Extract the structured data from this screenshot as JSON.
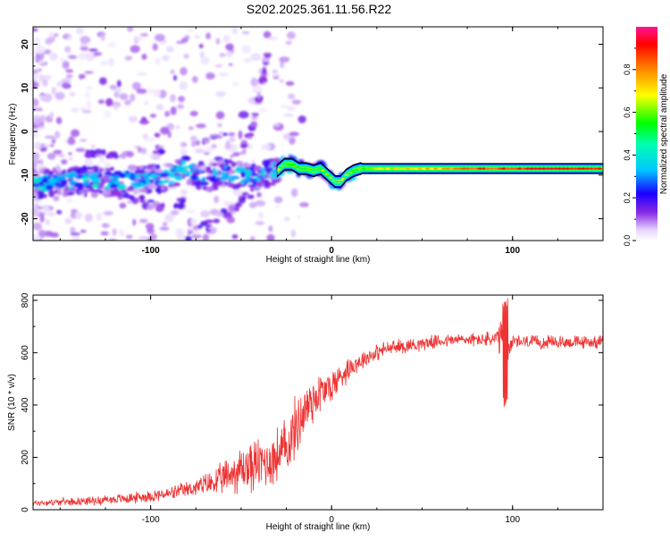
{
  "title": "S202.2025.361.11.56.R22",
  "colors": {
    "snr_line": "#ee3333",
    "axis": "#000000",
    "ridge_outline": "#000000"
  },
  "chart_data": [
    {
      "type": "heatmap",
      "name": "spectrogram",
      "xlabel": "Height of straight line (km)",
      "ylabel": "Frequency (Hz)",
      "xlim": [
        -165,
        150
      ],
      "ylim": [
        -25,
        24
      ],
      "x_ticks": [
        -100,
        0,
        100
      ],
      "x_tick_labels": [
        "-100",
        "0",
        "100"
      ],
      "y_ticks": [
        -20,
        -10,
        0,
        10,
        20
      ],
      "y_tick_labels": [
        "-20",
        "-10",
        "0",
        "10",
        "20"
      ],
      "ridge": {
        "x": [
          -165,
          -150,
          -135,
          -120,
          -105,
          -90,
          -80,
          -70,
          -60,
          -50,
          -40,
          -30,
          -26,
          -22,
          -18,
          -14,
          -10,
          -6,
          -2,
          2,
          5,
          8,
          12,
          16,
          20,
          30,
          40,
          60,
          80,
          90,
          100,
          120,
          150
        ],
        "freq": [
          -12,
          -11.5,
          -11,
          -11.5,
          -11,
          -10.5,
          -8.5,
          -11,
          -9.5,
          -10,
          -10.5,
          -9,
          -7.5,
          -7.5,
          -8.5,
          -8.5,
          -9,
          -8.5,
          -10,
          -11.5,
          -11.5,
          -10,
          -9,
          -8.5,
          -8.5,
          -8.5,
          -8.5,
          -8.5,
          -8.5,
          -8.5,
          -8.5,
          -8.5,
          -8.5
        ],
        "amplitude": [
          0.3,
          0.35,
          0.35,
          0.35,
          0.35,
          0.4,
          0.5,
          0.35,
          0.4,
          0.3,
          0.35,
          0.45,
          0.5,
          0.55,
          0.5,
          0.55,
          0.5,
          0.5,
          0.45,
          0.4,
          0.45,
          0.45,
          0.5,
          0.55,
          0.6,
          0.65,
          0.7,
          0.75,
          0.85,
          0.85,
          0.9,
          0.9,
          0.9
        ]
      },
      "secondary_tracks": [
        {
          "x": [
            -125,
            -110,
            -95,
            -80
          ],
          "freq": [
            -14,
            -15.5,
            -17,
            -16
          ]
        },
        {
          "x": [
            -80,
            -65,
            -52,
            -40,
            -32
          ],
          "freq": [
            -24,
            -21,
            -17,
            -12,
            -7
          ]
        },
        {
          "x": [
            -50,
            -44,
            -40,
            -37,
            -35
          ],
          "freq": [
            -5,
            0,
            8,
            14,
            18
          ]
        },
        {
          "x": [
            -150,
            -120,
            -95,
            -75,
            -55
          ],
          "freq": [
            -6,
            -5,
            -4,
            -2,
            0
          ]
        }
      ],
      "colorbar": {
        "label": "Normalized spectral amplitude",
        "range": [
          0,
          1
        ],
        "ticks": [
          0.0,
          0.2,
          0.4,
          0.6,
          0.8
        ],
        "tick_labels": [
          "0.0",
          "0.2",
          "0.4",
          "0.6",
          "0.8"
        ]
      }
    },
    {
      "type": "line",
      "name": "snr",
      "xlabel": "Height of straight line (km)",
      "ylabel": "SNR (10 * v/v)",
      "xlim": [
        -165,
        150
      ],
      "ylim": [
        0,
        820
      ],
      "x_ticks": [
        -100,
        0,
        100
      ],
      "x_tick_labels": [
        "-100",
        "0",
        "100"
      ],
      "y_ticks": [
        0,
        200,
        400,
        600,
        800
      ],
      "y_tick_labels": [
        "0",
        "200",
        "400",
        "600",
        "800"
      ],
      "series": [
        {
          "name": "SNR",
          "x": [
            -165,
            -150,
            -130,
            -110,
            -90,
            -75,
            -62,
            -55,
            -48,
            -40,
            -32,
            -25,
            -18,
            -12,
            -8,
            -4,
            0,
            5,
            10,
            15,
            20,
            30,
            40,
            55,
            70,
            80,
            90,
            93,
            95,
            97,
            100,
            110,
            130,
            150
          ],
          "mean": [
            25,
            30,
            35,
            45,
            60,
            85,
            110,
            140,
            160,
            175,
            195,
            235,
            340,
            410,
            440,
            455,
            470,
            510,
            545,
            565,
            585,
            615,
            625,
            640,
            650,
            650,
            650,
            650,
            640,
            630,
            640,
            640,
            640,
            640
          ],
          "spread": [
            15,
            15,
            20,
            25,
            30,
            40,
            70,
            90,
            120,
            120,
            130,
            140,
            140,
            130,
            110,
            90,
            80,
            70,
            50,
            45,
            40,
            35,
            35,
            30,
            30,
            30,
            40,
            80,
            150,
            80,
            35,
            30,
            30,
            30
          ]
        }
      ],
      "spike": {
        "x": 96,
        "range": [
          390,
          815
        ]
      }
    }
  ]
}
